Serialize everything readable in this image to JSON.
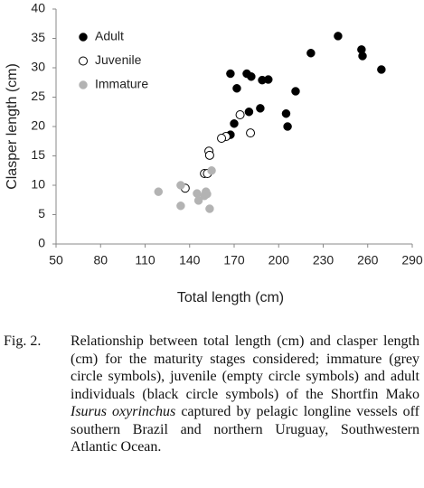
{
  "chart_data": {
    "type": "scatter",
    "x_label": "Total length (cm)",
    "y_label": "Clasper length (cm)",
    "xlim": [
      50,
      290
    ],
    "xticks": [
      50,
      80,
      110,
      140,
      170,
      200,
      230,
      260,
      290
    ],
    "ylim": [
      0,
      40
    ],
    "yticks": [
      0,
      5,
      10,
      15,
      20,
      25,
      30,
      35,
      40
    ],
    "grid": false,
    "legend": "top-left",
    "series": [
      {
        "name": "Adult",
        "color": "#000000",
        "filled": true,
        "x": [
          167.5,
          171.8,
          178.5,
          181.5,
          188.9,
          193,
          180,
          187.6,
          170,
          167.5,
          205,
          206,
          211.4,
          221.7,
          240,
          255.8,
          256.5,
          269.2
        ],
        "values": [
          29,
          26.5,
          29,
          28.5,
          27.9,
          28,
          22.5,
          23.1,
          20.5,
          18.6,
          22.2,
          20,
          26,
          32.5,
          35.4,
          33.1,
          32,
          29.7
        ]
      },
      {
        "name": "Juvenile",
        "color": "#000000",
        "filled": false,
        "x": [
          174,
          181,
          164.5,
          161.5,
          153,
          153.5,
          150,
          152,
          137
        ],
        "values": [
          22,
          18.9,
          18.3,
          18,
          15.8,
          15.1,
          12,
          12,
          9.5
        ]
      },
      {
        "name": "Immature",
        "color": "#b3b3b3",
        "filled": true,
        "x": [
          119,
          134,
          134,
          145,
          146,
          151,
          150,
          154.8,
          153.5,
          151.7
        ],
        "values": [
          8.9,
          10,
          6.5,
          8.6,
          7.4,
          8.9,
          8.2,
          12.5,
          6,
          8.5
        ]
      }
    ]
  },
  "caption": {
    "label": "Fig. 2.",
    "parts": [
      {
        "text": "Relationship between total length (cm) and clasper length (cm) for the maturity stages considered; immature (grey circle symbols), juvenile (empty circle symbols) and adult individuals (black circle symbols) of the Shortfin Mako ",
        "italic": false
      },
      {
        "text": "Isurus oxyrinchus",
        "italic": true
      },
      {
        "text": " captured by pelagic longline vessels off southern Brazil and northern Uruguay, Southwestern Atlantic Ocean.",
        "italic": false
      }
    ]
  }
}
